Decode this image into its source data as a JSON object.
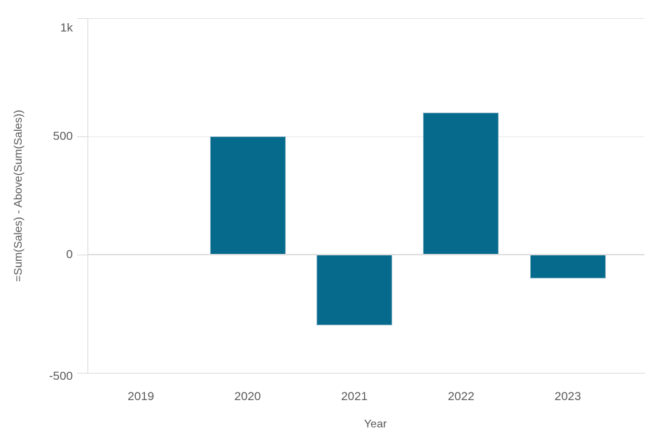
{
  "chart_data": {
    "type": "bar",
    "title": "",
    "categories": [
      "2019",
      "2020",
      "2021",
      "2022",
      "2023"
    ],
    "values": [
      0,
      500,
      -300,
      600,
      -100
    ],
    "xlabel": "Year",
    "ylabel": "=Sum(Sales) - Above(Sum(Sales))",
    "ylim": [
      -500,
      1000
    ],
    "yticks": [
      {
        "value": 1000,
        "label": "1k"
      },
      {
        "value": 500,
        "label": "500"
      },
      {
        "value": 0,
        "label": "0"
      },
      {
        "value": -500,
        "label": "-500"
      }
    ],
    "grid": true,
    "legend": false,
    "series_name": "=Sum(Sales) - Above(Sum(Sales))",
    "colors": {
      "bar_fill": "#066a8c",
      "bar_border": "#7fafc1",
      "axis_line": "#d9d9d9",
      "grid_line": "#e9e9e9",
      "zero_line": "#dedede",
      "text": "#595959",
      "background": "#ffffff"
    }
  }
}
